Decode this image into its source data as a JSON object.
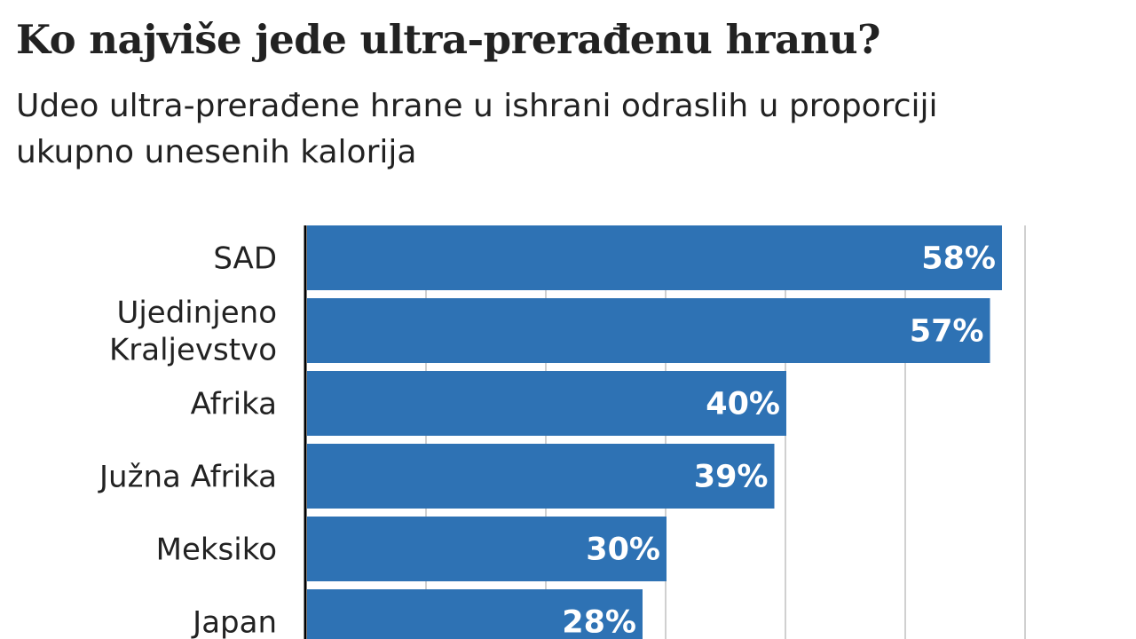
{
  "chart_data": {
    "type": "bar",
    "orientation": "horizontal",
    "title": "Ko najviše jede ultra-prerađenu hranu?",
    "subtitle": "Udeo ultra-prerađene hrane u ishrani odraslih u proporciji ukupno unesenih kalorija",
    "categories": [
      [
        "SAD"
      ],
      [
        "Ujedinjeno",
        "Kraljevstvo"
      ],
      [
        "Afrika"
      ],
      [
        "Južna Afrika"
      ],
      [
        "Meksiko"
      ],
      [
        "Japan"
      ]
    ],
    "values": [
      58,
      57,
      40,
      39,
      30,
      28
    ],
    "data_labels": [
      "58%",
      "57%",
      "40%",
      "39%",
      "30%",
      "28%"
    ],
    "xlim": [
      0,
      60
    ],
    "gridlines": [
      10,
      20,
      30,
      40,
      50,
      60
    ],
    "grid": true,
    "bar_color": "#2e72b4",
    "xlabel": "",
    "ylabel": ""
  }
}
